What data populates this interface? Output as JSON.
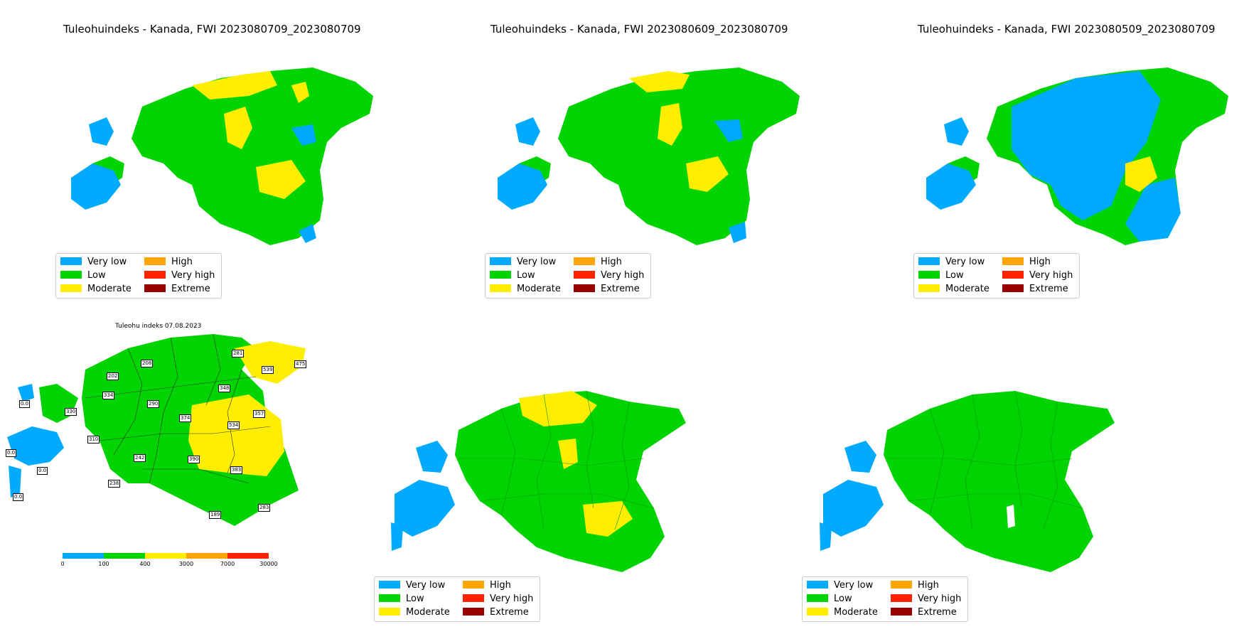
{
  "colors": {
    "very_low": "#00aaff",
    "low": "#00d400",
    "moderate": "#ffee00",
    "high": "#ffa500",
    "very_high": "#ff2200",
    "extreme": "#990000",
    "border": "#333333"
  },
  "legend": {
    "items": [
      {
        "key": "very_low",
        "label": "Very low"
      },
      {
        "key": "high",
        "label": "High"
      },
      {
        "key": "low",
        "label": "Low"
      },
      {
        "key": "very_high",
        "label": "Very high"
      },
      {
        "key": "moderate",
        "label": "Moderate"
      },
      {
        "key": "extreme",
        "label": "Extreme"
      }
    ]
  },
  "panels": {
    "p1": {
      "title": "Tuleohuindeks - Kanada, FWI 2023080709_2023080709"
    },
    "p2": {
      "title": "Tuleohuindeks - Kanada, FWI 2023080609_2023080709"
    },
    "p3": {
      "title": "Tuleohuindeks - Kanada, FWI 2023080509_2023080709"
    }
  },
  "observed": {
    "title": "Tuleohu indeks 07.08.2023",
    "colorbar_ticks": [
      "0",
      "100",
      "400",
      "3000",
      "7000",
      "30000"
    ],
    "stations": [
      "281",
      "475",
      "539",
      "208",
      "202",
      "348",
      "334",
      "290",
      "357",
      "374",
      "534",
      "0.0",
      "330",
      "310",
      "390",
      "242",
      "0.0",
      "0.0",
      "238",
      "383",
      "0.0",
      "283",
      "189"
    ]
  }
}
